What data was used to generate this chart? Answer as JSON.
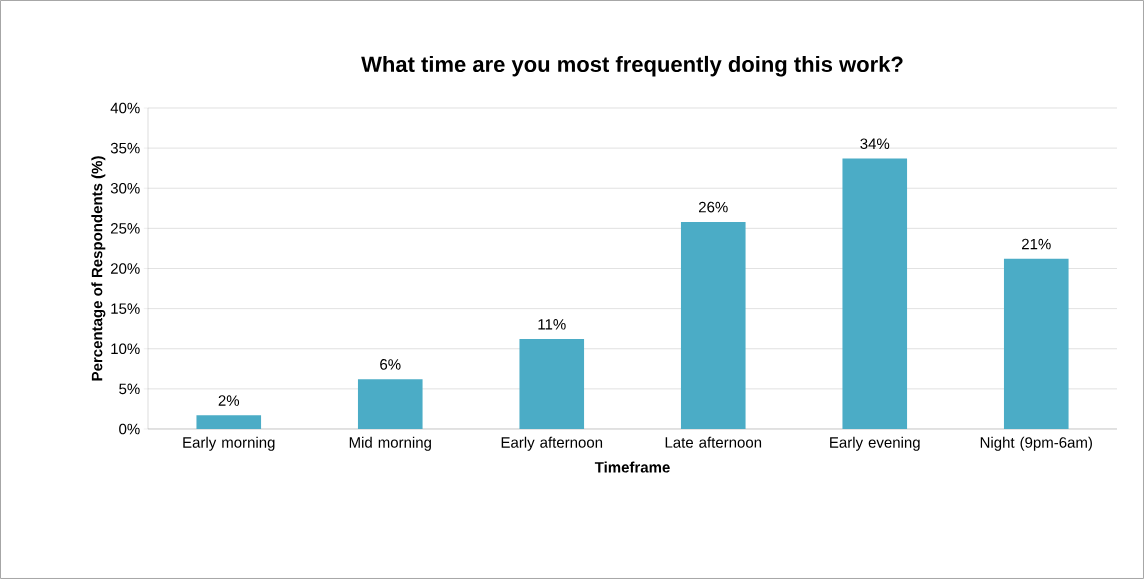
{
  "chart_data": {
    "type": "bar",
    "title": "What time are you most frequently doing this work?",
    "xlabel": "Timeframe",
    "ylabel": "Percentage of Respondents (%)",
    "categories": [
      "Early morning",
      "Mid morning",
      "Early afternoon",
      "Late afternoon",
      "Early evening",
      "Night (9pm-6am)"
    ],
    "values": [
      1.7,
      6.2,
      11.2,
      25.8,
      33.7,
      21.2
    ],
    "value_labels": [
      "2%",
      "6%",
      "11%",
      "26%",
      "34%",
      "21%"
    ],
    "color": "#4bacc6",
    "ylim": [
      0,
      40
    ],
    "yticks": [
      {
        "value": 0,
        "label": "0%"
      },
      {
        "value": 5,
        "label": "5%"
      },
      {
        "value": 10,
        "label": "10%"
      },
      {
        "value": 15,
        "label": "15%"
      },
      {
        "value": 20,
        "label": "20%"
      },
      {
        "value": 25,
        "label": "25%"
      },
      {
        "value": 30,
        "label": "30%"
      },
      {
        "value": 35,
        "label": "35%"
      },
      {
        "value": 40,
        "label": "40%"
      }
    ],
    "grid": "y"
  }
}
